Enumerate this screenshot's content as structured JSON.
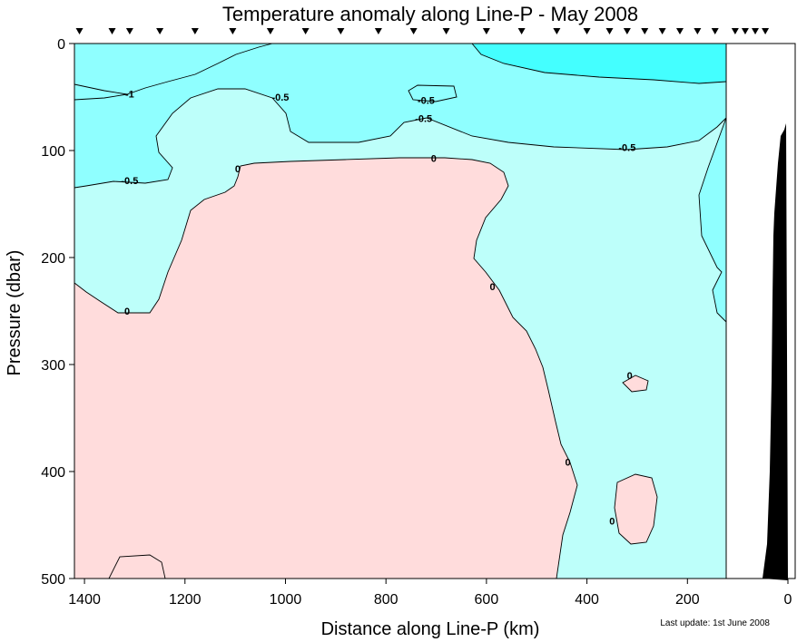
{
  "chart_data": {
    "type": "contour",
    "title": "Temperature anomaly along Line-P - May 2008",
    "xlabel": "Distance along Line-P (km)",
    "ylabel": "Pressure (dbar)",
    "xlim": [
      1420,
      0
    ],
    "ylim": [
      500,
      0
    ],
    "x_ticks": [
      1400,
      1200,
      1000,
      800,
      600,
      400,
      200,
      0
    ],
    "y_ticks": [
      0,
      100,
      200,
      300,
      400,
      500
    ],
    "data_right_edge_km": 125,
    "station_markers_km": [
      1410,
      1345,
      1310,
      1250,
      1180,
      1105,
      1030,
      960,
      890,
      815,
      745,
      680,
      600,
      530,
      460,
      400,
      355,
      320,
      285,
      250,
      215,
      180,
      145,
      105,
      85,
      65,
      45
    ],
    "contour_levels": [
      -1,
      -0.5,
      0
    ],
    "fill_colors": {
      "below_minus1": "#44ffff",
      "minus1_to_minus05": "#8fffff",
      "minus05_to_0": "#bdfffa",
      "above_0": "#ffdcdc"
    },
    "contour_labels": [
      {
        "text": "-1",
        "x": 1310,
        "y": 47
      },
      {
        "text": "-0.5",
        "x": 1310,
        "y": 128
      },
      {
        "text": "-0.5",
        "x": 1010,
        "y": 50
      },
      {
        "text": "-0.5",
        "x": 720,
        "y": 53
      },
      {
        "text": "-0.5",
        "x": 725,
        "y": 70
      },
      {
        "text": "-0.5",
        "x": 320,
        "y": 97
      },
      {
        "text": "0",
        "x": 1095,
        "y": 117
      },
      {
        "text": "0",
        "x": 705,
        "y": 107
      },
      {
        "text": "0",
        "x": 1315,
        "y": 250
      },
      {
        "text": "0",
        "x": 588,
        "y": 227
      },
      {
        "text": "0",
        "x": 438,
        "y": 391
      },
      {
        "text": "0",
        "x": 350,
        "y": 446
      },
      {
        "text": "0",
        "x": 315,
        "y": 310
      }
    ],
    "bathymetry_color": "#000000",
    "footnote": "Last update: 1st June 2008"
  }
}
